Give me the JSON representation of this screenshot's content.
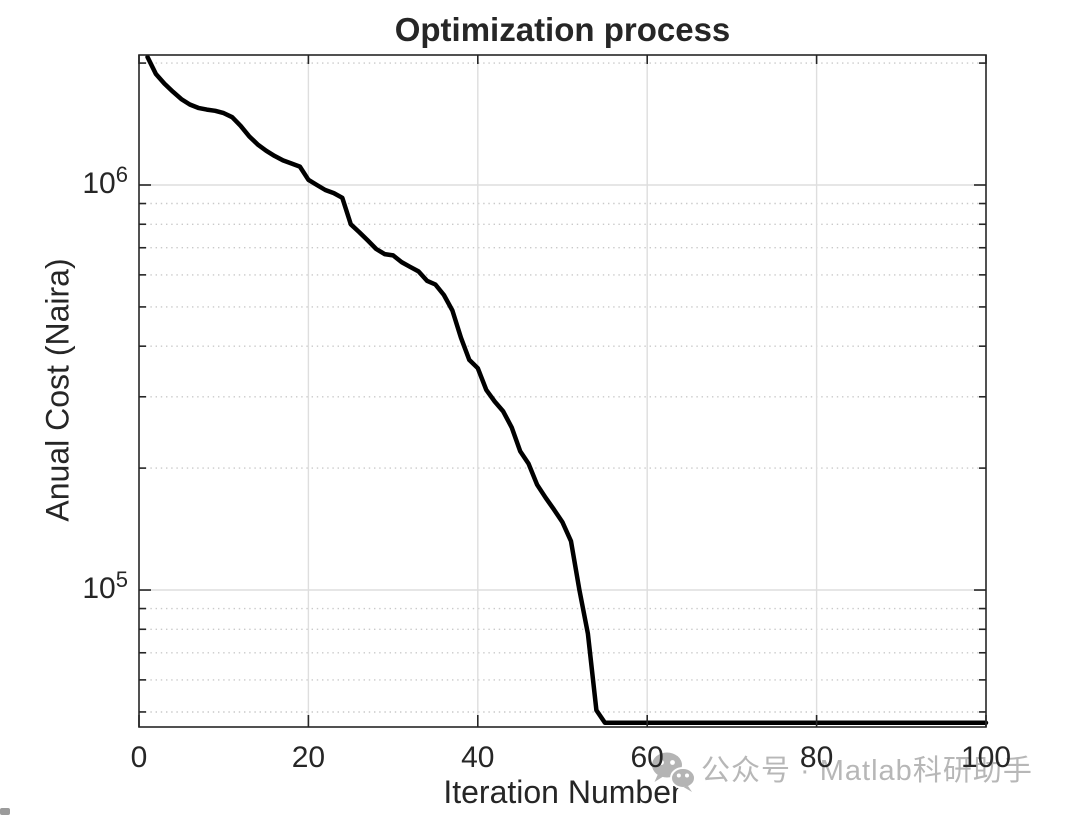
{
  "chart_data": {
    "type": "line",
    "title": "Optimization process",
    "xlabel": "Iteration Number",
    "ylabel": "Anual Cost (Naira)",
    "yscale": "log",
    "xlim": [
      0,
      100
    ],
    "ylim": [
      45900,
      2094000
    ],
    "x_ticks": [
      0,
      20,
      40,
      60,
      80,
      100
    ],
    "y_tick_labels": [
      {
        "value": 1000000,
        "base": "10",
        "exp": "6"
      },
      {
        "value": 100000,
        "base": "10",
        "exp": "5"
      }
    ],
    "y_major_grid": [
      1000000,
      100000
    ],
    "y_minor_grid": [
      2000000,
      900000,
      800000,
      700000,
      600000,
      500000,
      400000,
      300000,
      200000,
      90000,
      80000,
      70000,
      60000,
      50000
    ],
    "x_grid": [
      20,
      40,
      60,
      80
    ],
    "grid": true,
    "minor_grid": true,
    "legend": null,
    "line": {
      "color": "#000000",
      "width": 4.5
    },
    "series": [
      {
        "name": "cost",
        "x": [
          1,
          2,
          3,
          4,
          5,
          6,
          7,
          8,
          9,
          10,
          11,
          12,
          13,
          14,
          15,
          16,
          17,
          18,
          19,
          20,
          21,
          22,
          23,
          24,
          25,
          26,
          27,
          28,
          29,
          30,
          31,
          32,
          33,
          34,
          35,
          36,
          37,
          38,
          39,
          40,
          41,
          42,
          43,
          44,
          45,
          46,
          47,
          48,
          49,
          50,
          51,
          52,
          53,
          54,
          55,
          56,
          57,
          58,
          59,
          60,
          61,
          62,
          63,
          64,
          65,
          66,
          67,
          68,
          69,
          70,
          71,
          72,
          73,
          74,
          75,
          76,
          77,
          78,
          79,
          80,
          81,
          82,
          83,
          84,
          85,
          86,
          87,
          88,
          89,
          90,
          91,
          92,
          93,
          94,
          95,
          96,
          97,
          98,
          99,
          100
        ],
        "y": [
          2070000,
          1880000,
          1780000,
          1700000,
          1630000,
          1580000,
          1550000,
          1535000,
          1525000,
          1505000,
          1470000,
          1400000,
          1320000,
          1260000,
          1215000,
          1180000,
          1150000,
          1130000,
          1110000,
          1030000,
          1000000,
          972000,
          955000,
          930000,
          800000,
          765000,
          730000,
          695000,
          675000,
          670000,
          645000,
          628000,
          612000,
          580000,
          568000,
          535000,
          490000,
          420000,
          370000,
          353000,
          312000,
          292000,
          276000,
          252000,
          220000,
          205000,
          182000,
          169000,
          158000,
          147000,
          132000,
          100000,
          78000,
          50500,
          47000,
          47000,
          47000,
          47000,
          47000,
          47000,
          47000,
          47000,
          47000,
          47000,
          47000,
          47000,
          47000,
          47000,
          47000,
          47000,
          47000,
          47000,
          47000,
          47000,
          47000,
          47000,
          47000,
          47000,
          47000,
          47000,
          47000,
          47000,
          47000,
          47000,
          47000,
          47000,
          47000,
          47000,
          47000,
          47000,
          47000,
          47000,
          47000,
          47000,
          47000,
          47000,
          47000,
          47000,
          47000,
          47000
        ]
      }
    ]
  },
  "watermark": {
    "text": "公众号 · Matlab科研助手",
    "icon": "wechat-icon",
    "color": "#b7b7b7"
  },
  "colors": {
    "text": "#262626",
    "axis": "#262626",
    "grid_major": "#dedede",
    "grid_minor": "#c9c9c9",
    "background": "#ffffff"
  }
}
